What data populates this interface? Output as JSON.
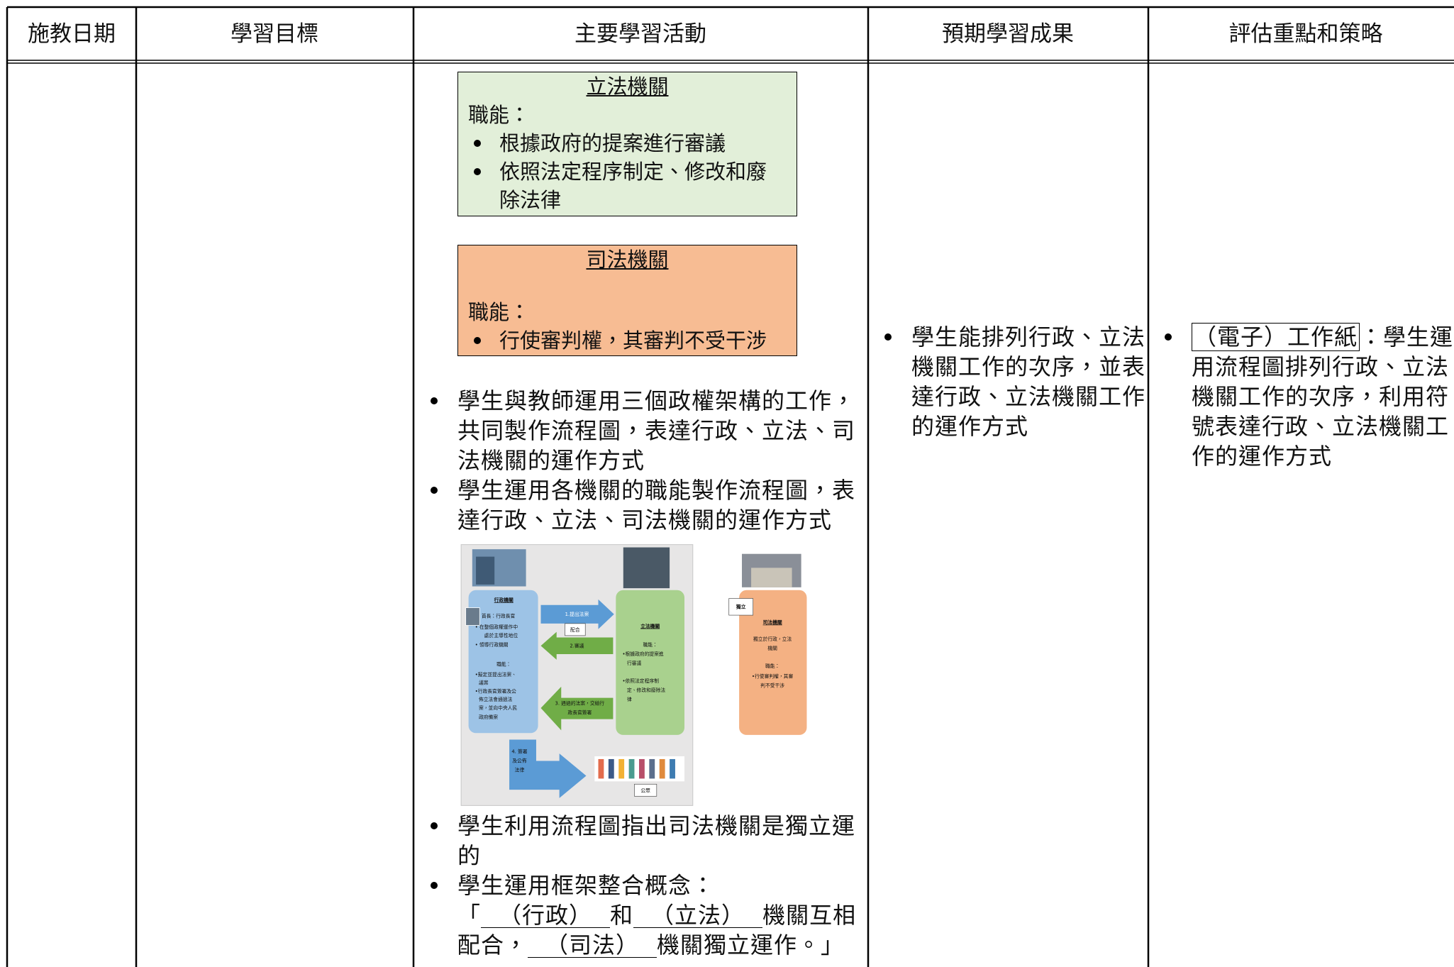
{
  "table": {
    "headers": [
      "施教日期",
      "學習目標",
      "主要學習活動",
      "預期學習成果",
      "評估重點和策略"
    ],
    "activities": {
      "legislature_box": {
        "title": "立法機關",
        "label": "職能：",
        "items": [
          "根據政府的提案進行審議",
          "依照法定程序制定、修改和廢除法律"
        ]
      },
      "judiciary_box": {
        "title": "司法機關",
        "label": "職能：",
        "items": [
          "行使審判權，其審判不受干涉"
        ]
      },
      "steps": [
        "學生與教師運用三個政權架構的工作，共同製作流程圖，表達行政、立法、司法機關的運作方式",
        "學生運用各機關的職能製作流程圖，表達行政、立法、司法機關的運作方式"
      ],
      "flowchart": {
        "executive": {
          "title": "行政機關",
          "lines": [
            "首長：行政長官",
            "•  在整個政權運作中",
            "處於主導性地位",
            "•  領導行政機關",
            "職能：",
            "•擬定並提出法案、",
            "議案",
            "•行政長官簽署及公",
            "佈立法會通過法",
            "案，並向中央人民",
            "政府備案"
          ]
        },
        "legislature": {
          "title": "立法機關",
          "lines": [
            "職能：",
            "•根據政府的提案進",
            "行審議",
            "•依照法定程序制",
            "定、修改和廢除法",
            "律"
          ]
        },
        "judiciary": {
          "title": "司法機關",
          "lines": [
            "獨立於行政，立法",
            "機關",
            "職能：",
            "•行使審判權，其審",
            "判不受干涉"
          ]
        },
        "arrows": [
          [
            "1.提出法案"
          ],
          [
            "2.審議"
          ],
          [
            "3. 通過的法案，交給行",
            "政長官簽署"
          ],
          [
            "4. 簽署",
            "及公佈",
            "法律"
          ]
        ],
        "cooperate": "配合",
        "independent": "獨立",
        "public": "公眾"
      },
      "steps_after": [
        "學生利用流程圖指出司法機關是獨立運的"
      ],
      "concept": {
        "lead": "學生運用框架整合概念：",
        "parts": [
          "「",
          "（行政）",
          "和",
          "（立法）",
          "機關互相配合，",
          "（司法）",
          "機關獨立運作。」"
        ]
      }
    },
    "outcomes": [
      "學生能排列行政、立法機關工作的次序，並表達行政、立法機關工作的運作方式"
    ],
    "assessment": {
      "tool": "（電子）工作紙",
      "text": "：學生運用流程圖排列行政、立法機關工作的次序，利用符號表達行政、立法機關工作的運作方式"
    }
  }
}
